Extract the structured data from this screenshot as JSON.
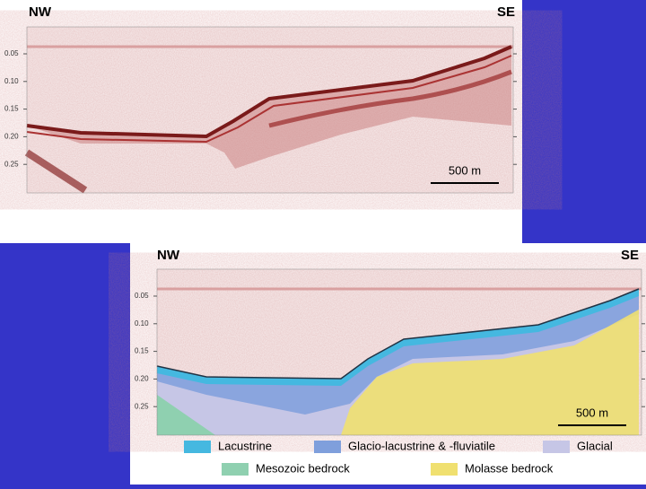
{
  "top_panel": {
    "left_label": "NW",
    "right_label": "SE",
    "ticks": [
      "0.05",
      "0.10",
      "0.15",
      "0.20",
      "0.25"
    ],
    "scale_bar": "500 m"
  },
  "bottom_panel": {
    "left_label": "NW",
    "right_label": "SE",
    "ticks": [
      "0.05",
      "0.10",
      "0.15",
      "0.20",
      "0.25"
    ],
    "scale_bar": "500 m",
    "legend": [
      "Lacustrine",
      "Glacio-lacustrine & -fluviatile",
      "Glacial",
      "Mesozoic bedrock",
      "Molasse bedrock"
    ]
  }
}
